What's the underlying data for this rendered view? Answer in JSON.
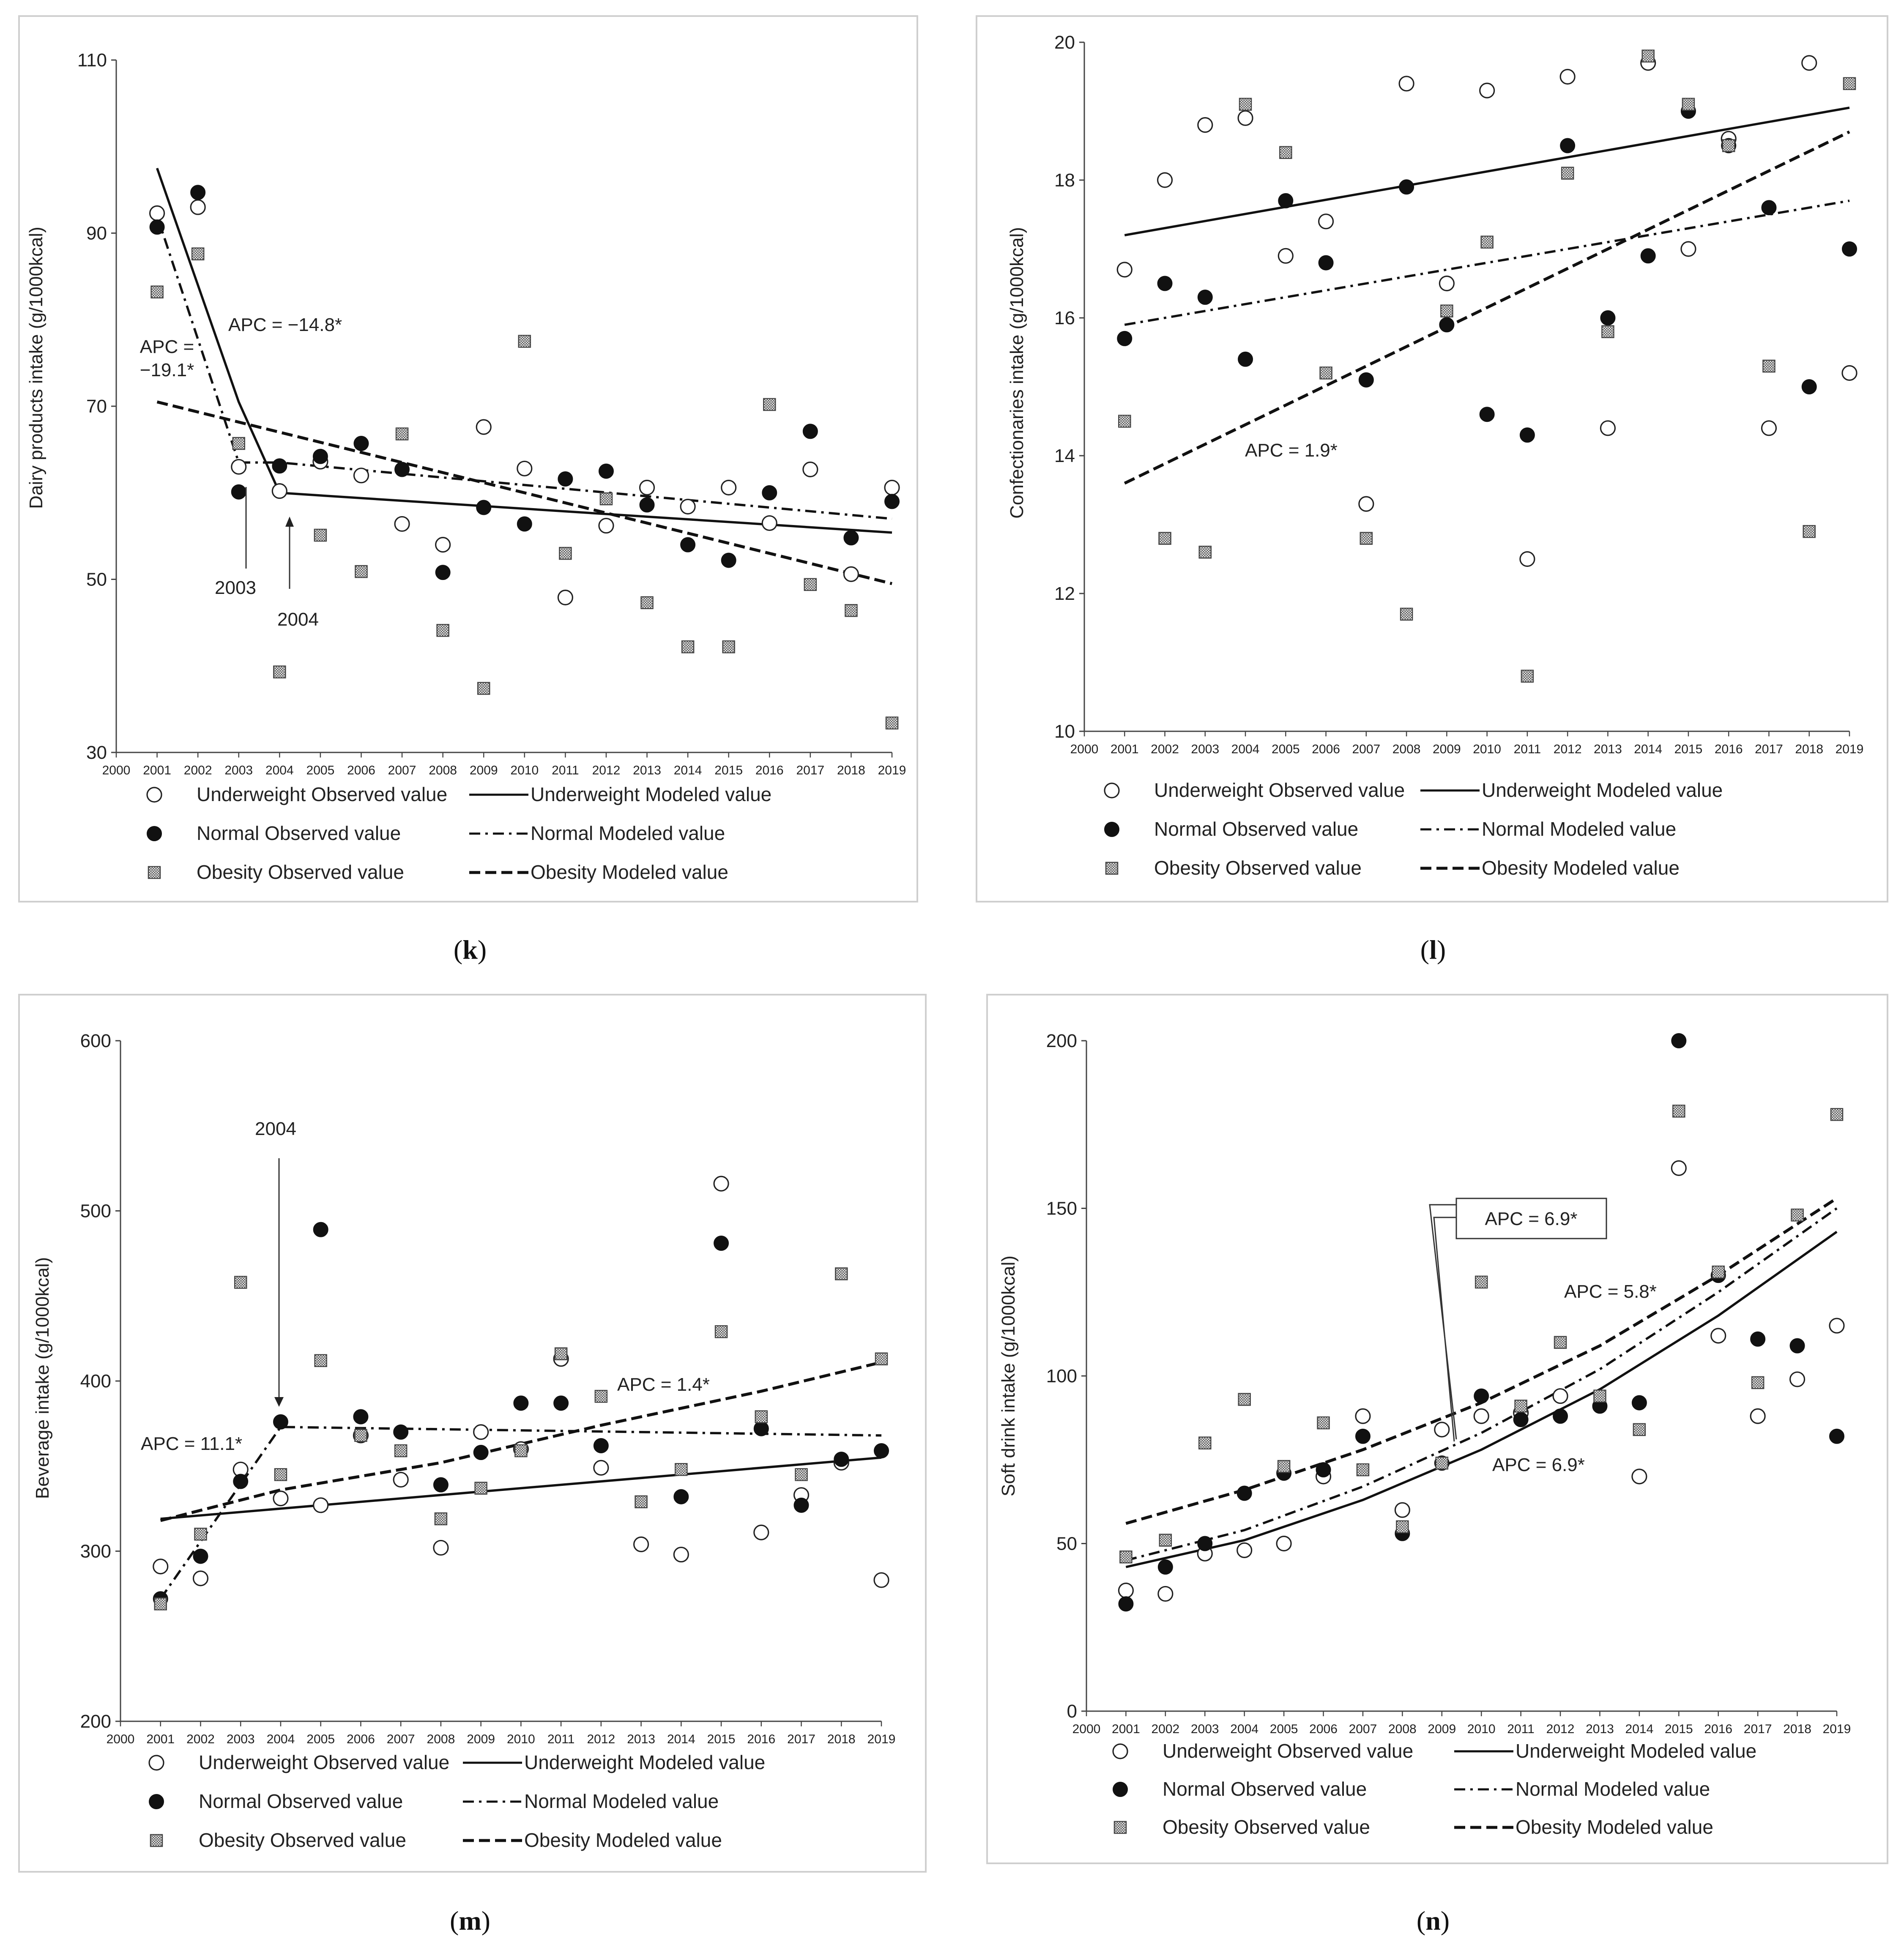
{
  "legend": {
    "uw_obs": "Underweight Observed value",
    "uw_mod": "Underweight Modeled value",
    "n_obs": "Normal Observed value",
    "n_mod": "Normal Modeled value",
    "ob_obs": "Obesity Observed value",
    "ob_mod": "Obesity Modeled value"
  },
  "panel_labels": {
    "k": {
      "open": "(",
      "letter": "k",
      "close": ")"
    },
    "l": {
      "open": "(",
      "letter": "l",
      "close": ")"
    },
    "m": {
      "open": "(",
      "letter": "m",
      "close": ")"
    },
    "n": {
      "open": "(",
      "letter": "n",
      "close": ")"
    }
  },
  "chart_data": [
    {
      "id": "k",
      "type": "scatter",
      "ylabel": "Dairy products intake (g/1000kcal)",
      "xlabel": "",
      "ylim": [
        30,
        110
      ],
      "yticks": [
        30,
        50,
        70,
        90,
        110
      ],
      "xlim": [
        2000,
        2019
      ],
      "xticks": [
        2000,
        2001,
        2002,
        2003,
        2004,
        2005,
        2006,
        2007,
        2008,
        2009,
        2010,
        2011,
        2012,
        2013,
        2014,
        2015,
        2016,
        2017,
        2018,
        2019
      ],
      "series": [
        {
          "name": "Underweight Observed value",
          "kind": "obs",
          "marker": "open",
          "x": [
            2001,
            2002,
            2003,
            2004,
            2005,
            2006,
            2007,
            2008,
            2009,
            2010,
            2011,
            2012,
            2013,
            2014,
            2015,
            2016,
            2017,
            2018,
            2019
          ],
          "values": [
            92.3,
            93.0,
            63.0,
            60.2,
            63.6,
            62.0,
            56.4,
            54.0,
            67.6,
            62.8,
            47.9,
            56.2,
            60.6,
            58.4,
            60.6,
            56.5,
            62.7,
            50.6,
            60.6
          ]
        },
        {
          "name": "Normal Observed value",
          "kind": "obs",
          "marker": "filled",
          "x": [
            2001,
            2002,
            2003,
            2004,
            2005,
            2006,
            2007,
            2008,
            2009,
            2010,
            2011,
            2012,
            2013,
            2014,
            2015,
            2016,
            2017,
            2018,
            2019
          ],
          "values": [
            90.7,
            94.7,
            60.1,
            63.1,
            64.2,
            65.7,
            62.7,
            50.8,
            58.3,
            56.4,
            61.6,
            62.5,
            58.6,
            54.0,
            52.2,
            60.0,
            67.1,
            54.8,
            59.0
          ]
        },
        {
          "name": "Obesity Observed value",
          "kind": "obs",
          "marker": "hatched",
          "x": [
            2001,
            2002,
            2003,
            2004,
            2005,
            2006,
            2007,
            2008,
            2009,
            2010,
            2011,
            2012,
            2013,
            2014,
            2015,
            2016,
            2017,
            2018,
            2019
          ],
          "values": [
            83.2,
            87.6,
            65.7,
            39.3,
            55.1,
            50.9,
            66.8,
            44.1,
            37.4,
            77.5,
            53.0,
            59.3,
            47.3,
            42.2,
            42.2,
            70.2,
            49.4,
            46.4,
            33.4
          ]
        },
        {
          "name": "Underweight Modeled value",
          "kind": "mod",
          "dash": "solid",
          "x": [
            2001,
            2003,
            2004,
            2019
          ],
          "values": [
            97.5,
            70.5,
            60.0,
            55.4
          ]
        },
        {
          "name": "Normal Modeled value",
          "kind": "mod",
          "dash": "dashdot",
          "x": [
            2001,
            2003,
            2004,
            2019
          ],
          "values": [
            92.0,
            63.5,
            63.5,
            57.0
          ]
        },
        {
          "name": "Obesity Modeled value",
          "kind": "mod",
          "dash": "dashed",
          "x": [
            2001,
            2019
          ],
          "values": [
            70.5,
            49.5
          ]
        }
      ],
      "annotations": [
        {
          "line1": "APC = −14.8*",
          "line2": ""
        },
        {
          "line1": "APC =",
          "line2": "−19.1*"
        },
        {
          "line1": "2003",
          "line2": ""
        },
        {
          "line1": "2004",
          "line2": ""
        }
      ]
    },
    {
      "id": "l",
      "type": "scatter",
      "ylabel": "Confectionaries intake (g/1000kcal)",
      "xlabel": "",
      "ylim": [
        10,
        20
      ],
      "yticks": [
        10,
        12,
        14,
        16,
        18,
        20
      ],
      "xlim": [
        2000,
        2019
      ],
      "xticks": [
        2000,
        2001,
        2002,
        2003,
        2004,
        2005,
        2006,
        2007,
        2008,
        2009,
        2010,
        2011,
        2012,
        2013,
        2014,
        2015,
        2016,
        2017,
        2018,
        2019
      ],
      "series": [
        {
          "name": "Underweight Observed value",
          "kind": "obs",
          "marker": "open",
          "x": [
            2001,
            2002,
            2003,
            2004,
            2005,
            2006,
            2007,
            2008,
            2009,
            2010,
            2011,
            2012,
            2013,
            2014,
            2015,
            2016,
            2017,
            2018,
            2019
          ],
          "values": [
            16.7,
            18.0,
            18.8,
            18.9,
            16.9,
            17.4,
            13.3,
            19.4,
            16.5,
            19.3,
            12.5,
            19.5,
            14.4,
            19.7,
            17.0,
            18.6,
            14.4,
            19.7,
            15.2
          ]
        },
        {
          "name": "Normal Observed value",
          "kind": "obs",
          "marker": "filled",
          "x": [
            2001,
            2002,
            2003,
            2004,
            2005,
            2006,
            2007,
            2008,
            2009,
            2010,
            2011,
            2012,
            2013,
            2014,
            2015,
            2016,
            2017,
            2018,
            2019
          ],
          "values": [
            15.7,
            16.5,
            16.3,
            15.4,
            17.7,
            16.8,
            15.1,
            17.9,
            15.9,
            14.6,
            14.3,
            18.5,
            16.0,
            16.9,
            19.0,
            18.5,
            17.6,
            15.0,
            17.0
          ]
        },
        {
          "name": "Obesity Observed value",
          "kind": "obs",
          "marker": "hatched",
          "x": [
            2001,
            2002,
            2003,
            2004,
            2005,
            2006,
            2007,
            2008,
            2009,
            2010,
            2011,
            2012,
            2013,
            2014,
            2015,
            2016,
            2017,
            2018,
            2019
          ],
          "values": [
            14.5,
            12.8,
            12.6,
            19.1,
            18.4,
            15.2,
            12.8,
            11.7,
            16.1,
            17.1,
            10.8,
            18.1,
            15.8,
            19.8,
            19.1,
            18.5,
            15.3,
            12.9,
            19.4
          ]
        },
        {
          "name": "Underweight Modeled value",
          "kind": "mod",
          "dash": "solid",
          "x": [
            2001,
            2019
          ],
          "values": [
            17.2,
            19.05
          ]
        },
        {
          "name": "Normal Modeled value",
          "kind": "mod",
          "dash": "dashdot",
          "x": [
            2001,
            2019
          ],
          "values": [
            15.9,
            17.7
          ]
        },
        {
          "name": "Obesity Modeled value",
          "kind": "mod",
          "dash": "dashed",
          "x": [
            2001,
            2019
          ],
          "values": [
            13.6,
            18.7
          ]
        }
      ],
      "annotations": [
        {
          "line1": "APC = 1.9*",
          "line2": ""
        }
      ]
    },
    {
      "id": "m",
      "type": "scatter",
      "ylabel": "Beverage intake (g/1000kcal)",
      "xlabel": "",
      "ylim": [
        200,
        600
      ],
      "yticks": [
        200,
        300,
        400,
        500,
        600
      ],
      "xlim": [
        2000,
        2019
      ],
      "xticks": [
        2000,
        2001,
        2002,
        2003,
        2004,
        2005,
        2006,
        2007,
        2008,
        2009,
        2010,
        2011,
        2012,
        2013,
        2014,
        2015,
        2016,
        2017,
        2018,
        2019
      ],
      "series": [
        {
          "name": "Underweight Observed value",
          "kind": "obs",
          "marker": "open",
          "x": [
            2001,
            2002,
            2003,
            2004,
            2005,
            2006,
            2007,
            2008,
            2009,
            2010,
            2011,
            2012,
            2013,
            2014,
            2015,
            2016,
            2017,
            2018,
            2019
          ],
          "values": [
            291,
            284,
            348,
            331,
            327,
            368,
            342,
            302,
            370,
            360,
            413,
            349,
            304,
            298,
            516,
            311,
            333,
            352,
            283
          ]
        },
        {
          "name": "Normal Observed value",
          "kind": "obs",
          "marker": "filled",
          "x": [
            2001,
            2002,
            2003,
            2004,
            2005,
            2006,
            2007,
            2008,
            2009,
            2010,
            2011,
            2012,
            2013,
            2014,
            2015,
            2016,
            2017,
            2018,
            2019
          ],
          "values": [
            272,
            297,
            341,
            376,
            489,
            379,
            370,
            339,
            358,
            387,
            387,
            362,
            null,
            332,
            481,
            372,
            327,
            354,
            359
          ]
        },
        {
          "name": "Obesity Observed value",
          "kind": "obs",
          "marker": "hatched",
          "x": [
            2001,
            2002,
            2003,
            2004,
            2005,
            2006,
            2007,
            2008,
            2009,
            2010,
            2011,
            2012,
            2013,
            2014,
            2015,
            2016,
            2017,
            2018,
            2019
          ],
          "values": [
            269,
            310,
            458,
            345,
            412,
            368,
            359,
            319,
            337,
            359,
            416,
            391,
            329,
            348,
            429,
            379,
            345,
            463,
            413
          ]
        },
        {
          "name": "Underweight Modeled value",
          "kind": "mod",
          "dash": "solid",
          "x": [
            2001,
            2019
          ],
          "values": [
            319,
            355
          ]
        },
        {
          "name": "Normal Modeled value",
          "kind": "mod",
          "dash": "dashdot",
          "x": [
            2001,
            2004,
            2019
          ],
          "values": [
            272,
            373,
            368
          ]
        },
        {
          "name": "Obesity Modeled value",
          "kind": "mod",
          "dash": "dashed",
          "x": [
            2001,
            2004,
            2008,
            2012,
            2016,
            2019
          ],
          "values": [
            318,
            336,
            352,
            374,
            394,
            411
          ]
        }
      ],
      "annotations": [
        {
          "line1": "2004",
          "line2": ""
        },
        {
          "line1": "APC = 11.1*",
          "line2": ""
        },
        {
          "line1": "APC = 1.4*",
          "line2": ""
        }
      ]
    },
    {
      "id": "n",
      "type": "scatter",
      "ylabel": "Soft drink intake (g/1000kcal)",
      "xlabel": "",
      "ylim": [
        0,
        200
      ],
      "yticks": [
        0,
        50,
        100,
        150,
        200
      ],
      "xlim": [
        2000,
        2019
      ],
      "xticks": [
        2000,
        2001,
        2002,
        2003,
        2004,
        2005,
        2006,
        2007,
        2008,
        2009,
        2010,
        2011,
        2012,
        2013,
        2014,
        2015,
        2016,
        2017,
        2018,
        2019
      ],
      "series": [
        {
          "name": "Underweight Observed value",
          "kind": "obs",
          "marker": "open",
          "x": [
            2001,
            2002,
            2003,
            2004,
            2005,
            2006,
            2007,
            2008,
            2009,
            2010,
            2011,
            2012,
            2013,
            2014,
            2015,
            2016,
            2017,
            2018,
            2019
          ],
          "values": [
            36,
            35,
            47,
            48,
            50,
            70,
            88,
            60,
            84,
            88,
            89,
            94,
            null,
            70,
            162,
            112,
            88,
            99,
            115
          ]
        },
        {
          "name": "Normal Observed value",
          "kind": "obs",
          "marker": "filled",
          "x": [
            2001,
            2002,
            2003,
            2004,
            2005,
            2006,
            2007,
            2008,
            2009,
            2010,
            2011,
            2012,
            2013,
            2014,
            2015,
            2016,
            2017,
            2018,
            2019
          ],
          "values": [
            32,
            43,
            50,
            65,
            71,
            72,
            82,
            53,
            74,
            94,
            87,
            88,
            91,
            92,
            200,
            130,
            111,
            109,
            82
          ]
        },
        {
          "name": "Obesity Observed value",
          "kind": "obs",
          "marker": "hatched",
          "x": [
            2001,
            2002,
            2003,
            2004,
            2005,
            2006,
            2007,
            2008,
            2009,
            2010,
            2011,
            2012,
            2013,
            2014,
            2015,
            2016,
            2017,
            2018,
            2019
          ],
          "values": [
            46,
            51,
            80,
            93,
            73,
            86,
            72,
            55,
            74,
            128,
            91,
            110,
            94,
            84,
            179,
            131,
            98,
            148,
            178
          ]
        },
        {
          "name": "Underweight Modeled value",
          "kind": "mod",
          "dash": "solid",
          "x": [
            2001,
            2004,
            2007,
            2010,
            2013,
            2016,
            2019
          ],
          "values": [
            43,
            51,
            63,
            78,
            96,
            118,
            143
          ]
        },
        {
          "name": "Normal Modeled value",
          "kind": "mod",
          "dash": "dashdot",
          "x": [
            2001,
            2004,
            2007,
            2010,
            2013,
            2016,
            2019
          ],
          "values": [
            45,
            54,
            67,
            83,
            102,
            125,
            150
          ]
        },
        {
          "name": "Obesity Modeled value",
          "kind": "mod",
          "dash": "dashed",
          "x": [
            2001,
            2004,
            2007,
            2010,
            2013,
            2016,
            2019
          ],
          "values": [
            56,
            66,
            78,
            92,
            109,
            130,
            153
          ]
        }
      ],
      "annotations": [
        {
          "line1": "APC = 6.9*",
          "line2": ""
        },
        {
          "line1": "APC = 5.8*",
          "line2": ""
        },
        {
          "line1": "APC = 6.9*",
          "line2": ""
        }
      ]
    }
  ]
}
